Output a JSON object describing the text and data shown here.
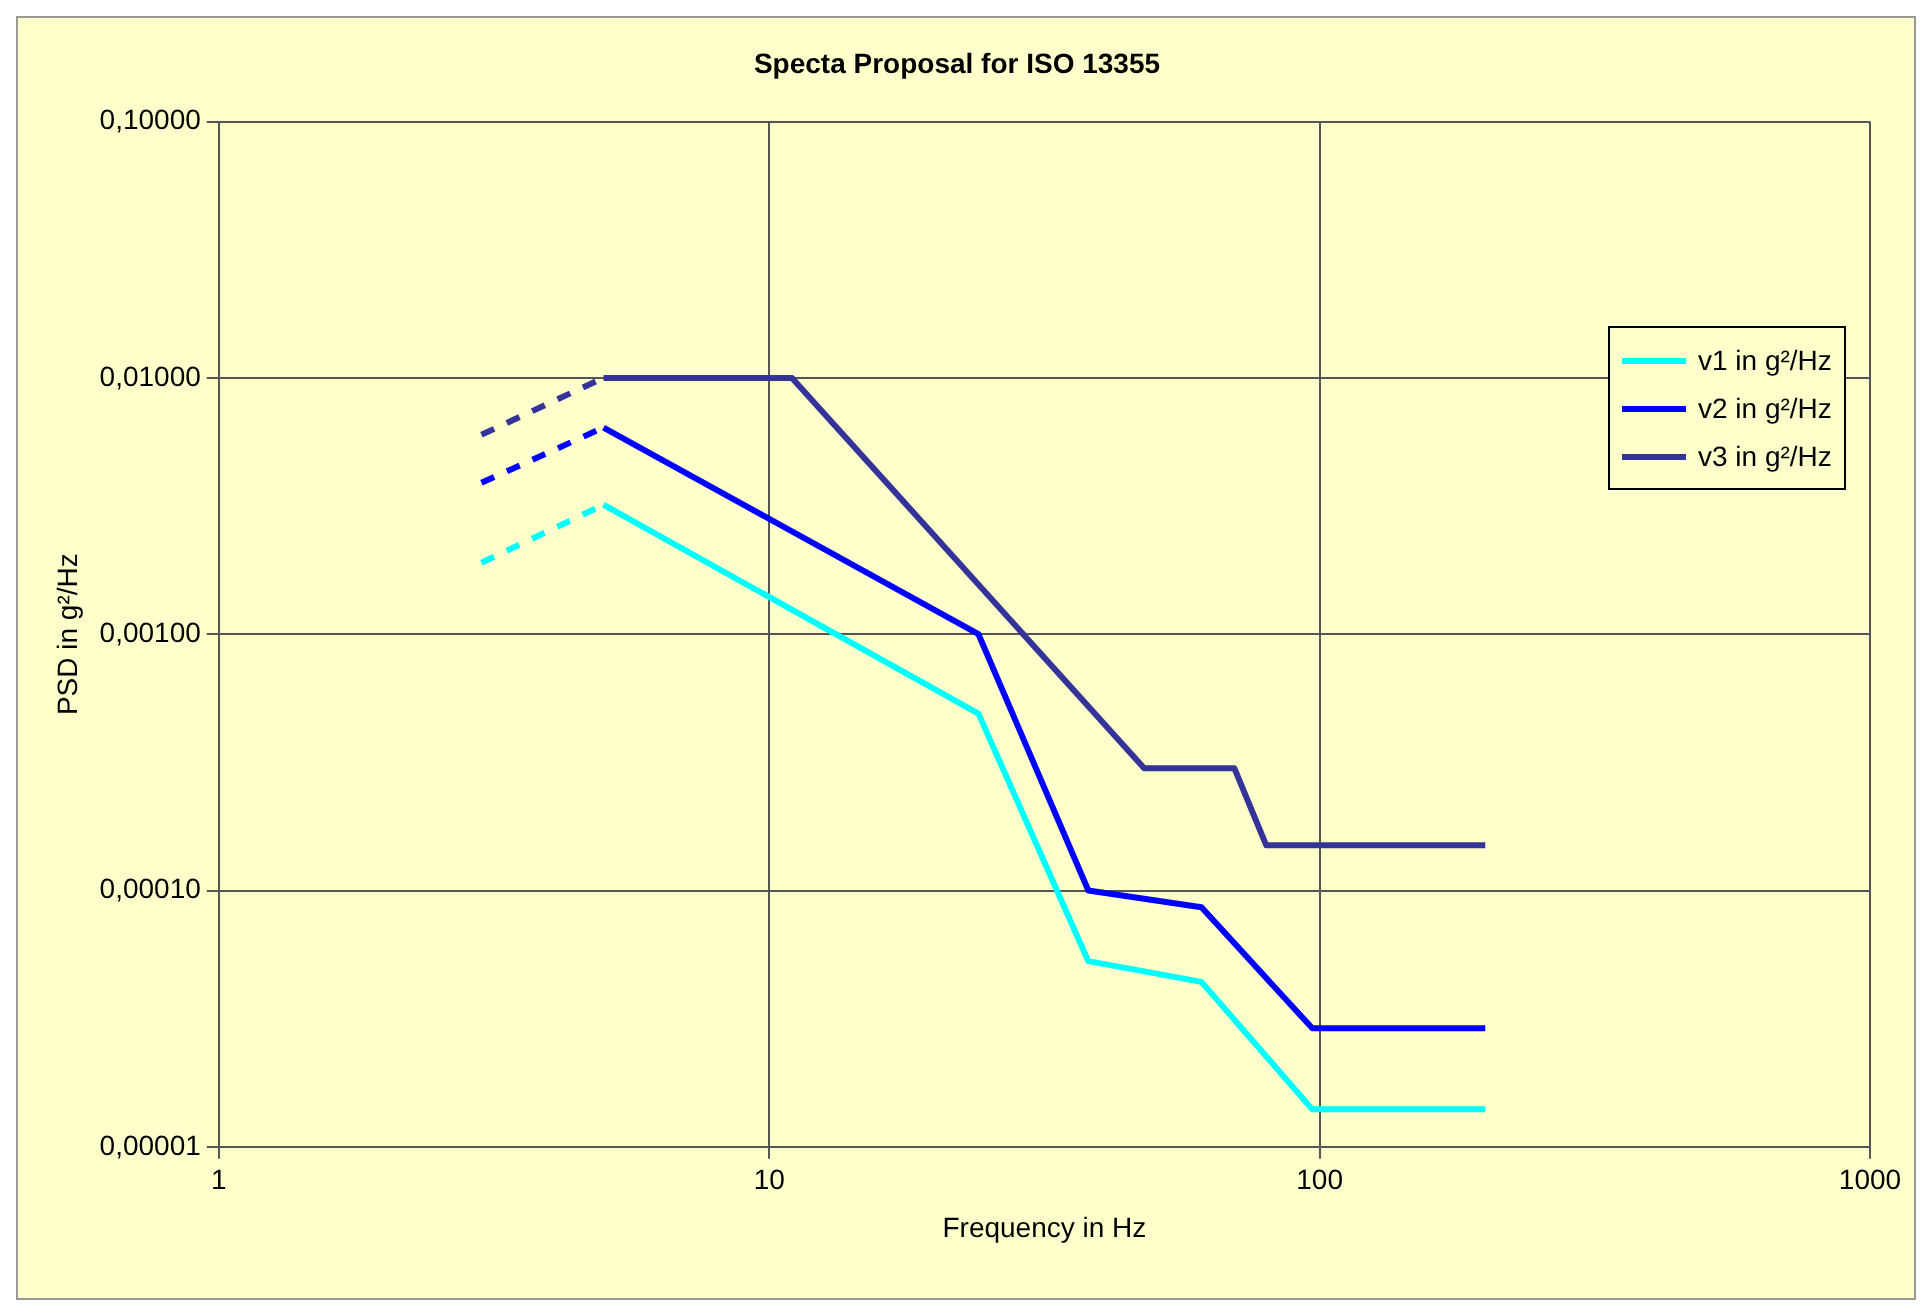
{
  "chart_data": {
    "type": "line",
    "title": "Specta Proposal for ISO 13355",
    "xlabel": "Frequency in Hz",
    "ylabel": "PSD in g²/Hz",
    "log": "xy",
    "grid": true,
    "legend": "right",
    "marker": "none",
    "xlim": [
      1,
      1000
    ],
    "xticks": [
      1,
      10,
      100,
      1000
    ],
    "ylim": [
      1e-05,
      0.1
    ],
    "yticks": [
      {
        "value": 1e-05,
        "label": "0,00001"
      },
      {
        "value": 0.0001,
        "label": "0,00010"
      },
      {
        "value": 0.001,
        "label": "0,00100"
      },
      {
        "value": 0.01,
        "label": "0,01000"
      },
      {
        "value": 0.1,
        "label": "0,10000"
      }
    ],
    "series": [
      {
        "color": "#00ffff",
        "line_style": "dashed",
        "x": [
          3,
          5
        ],
        "values": [
          0.0019,
          0.0032
        ]
      },
      {
        "color": "#0000ff",
        "line_style": "dashed",
        "x": [
          3,
          5
        ],
        "values": [
          0.0039,
          0.0064
        ]
      },
      {
        "color": "#333399",
        "line_style": "dashed",
        "x": [
          3,
          5
        ],
        "values": [
          0.006,
          0.01
        ]
      },
      {
        "name": "v1 in g²/Hz",
        "color": "#00ffff",
        "line_style": "solid",
        "x": [
          5,
          24,
          38,
          61,
          97,
          200
        ],
        "values": [
          0.0032,
          0.00049,
          5.3e-05,
          4.4e-05,
          1.4e-05,
          1.4e-05
        ]
      },
      {
        "name": "v2 in g²/Hz",
        "color": "#0000ff",
        "line_style": "solid",
        "x": [
          5,
          24,
          38,
          61,
          97,
          200
        ],
        "values": [
          0.0064,
          0.001,
          0.0001,
          8.6e-05,
          2.9e-05,
          2.9e-05
        ]
      },
      {
        "name": "v3 in g²/Hz",
        "color": "#333399",
        "line_style": "solid",
        "x": [
          5,
          11,
          48,
          70,
          80,
          200
        ],
        "values": [
          0.01,
          0.01,
          0.0003,
          0.0003,
          0.00015,
          0.00015
        ]
      }
    ]
  }
}
